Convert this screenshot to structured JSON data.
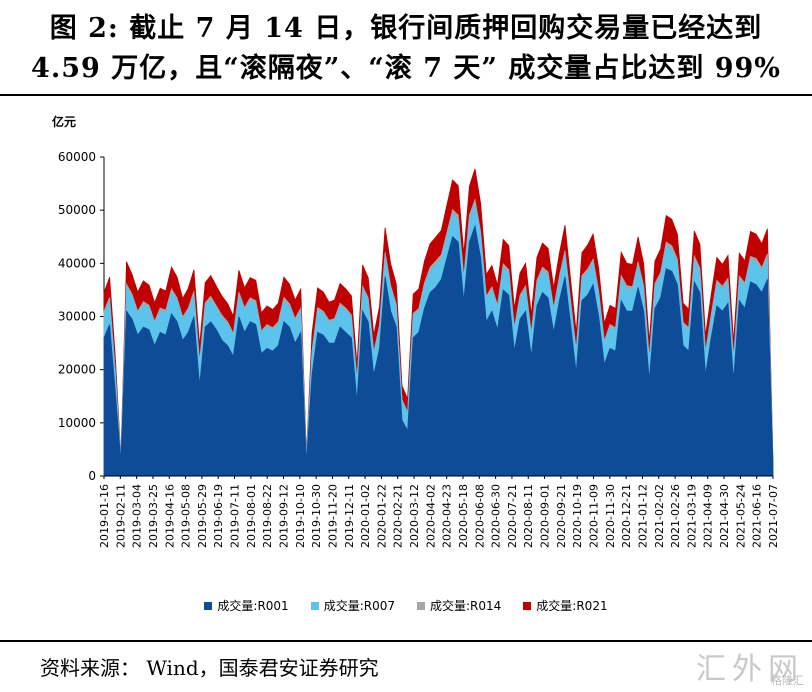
{
  "title": {
    "line1": "图 2: 截止 7 月 14 日，银行间质押回购交易量已经达到",
    "line2": "4.59 万亿，且“滚隔夜”、“滚 7 天” 成交量占比达到 99%"
  },
  "source": "资料来源： Wind，国泰君安证券研究",
  "watermark": {
    "main": "汇外网",
    "sub": "格隆汇"
  },
  "chart_data": {
    "type": "area",
    "ylabel": "亿元",
    "ylim": [
      0,
      60000
    ],
    "yticks": [
      "0",
      "10000",
      "20000",
      "30000",
      "40000",
      "50000",
      "60000"
    ],
    "x_tick_labels": [
      "2019-01-16",
      "2019-02-11",
      "2019-03-04",
      "2019-03-25",
      "2019-04-16",
      "2019-05-08",
      "2019-05-29",
      "2019-06-19",
      "2019-07-11",
      "2019-08-01",
      "2019-08-22",
      "2019-09-12",
      "2019-10-10",
      "2019-10-30",
      "2019-11-20",
      "2019-12-11",
      "2020-01-02",
      "2020-01-22",
      "2020-02-21",
      "2020-03-12",
      "2020-04-02",
      "2020-04-23",
      "2020-05-18",
      "2020-06-08",
      "2020-06-30",
      "2020-07-21",
      "2020-08-11",
      "2020-09-01",
      "2020-09-21",
      "2020-10-19",
      "2020-11-09",
      "2020-11-30",
      "2020-12-21",
      "2021-01-12",
      "2021-02-02",
      "2021-02-26",
      "2021-03-19",
      "2021-04-09",
      "2021-04-30",
      "2021-05-24",
      "2021-06-16",
      "2021-07-07"
    ],
    "stacked": true,
    "series": [
      {
        "name": "成交量:R001",
        "color": "#0f4c97",
        "values": [
          26000,
          28500,
          16000,
          2800,
          31000,
          29500,
          26500,
          28000,
          27500,
          24500,
          27000,
          26500,
          30500,
          29000,
          25500,
          27000,
          30000,
          17000,
          28000,
          29000,
          27500,
          25500,
          24500,
          22500,
          30000,
          27000,
          29000,
          28500,
          23000,
          24000,
          23500,
          24500,
          29000,
          28000,
          25000,
          27000,
          2500,
          19000,
          27000,
          26500,
          25000,
          25000,
          28000,
          27000,
          26000,
          14000,
          31000,
          29000,
          19000,
          24000,
          37500,
          31000,
          28000,
          10500,
          8500,
          26000,
          27000,
          31500,
          34500,
          35500,
          37000,
          41000,
          45000,
          44000,
          33000,
          44000,
          47000,
          41000,
          29000,
          31000,
          27500,
          35000,
          34000,
          23500,
          29500,
          31000,
          22500,
          32000,
          34500,
          33500,
          27000,
          33000,
          37500,
          28500,
          19500,
          33000,
          34000,
          36000,
          30000,
          21000,
          24000,
          23500,
          33000,
          31000,
          31000,
          35500,
          31000,
          18000,
          31500,
          33500,
          39000,
          38500,
          36000,
          24500,
          23500,
          36500,
          34500,
          19000,
          26000,
          32000,
          31000,
          32500,
          18000,
          33000,
          31500,
          36500,
          36000,
          34500,
          37000,
          2000
        ]
      },
      {
        "name": "成交量:R007",
        "color": "#5bc3ec",
        "values": [
          4500,
          4500,
          3500,
          200,
          4500,
          4200,
          4000,
          4200,
          4100,
          4200,
          4100,
          4200,
          4100,
          4000,
          4000,
          4100,
          4200,
          4100,
          4100,
          4200,
          4000,
          4200,
          4100,
          3900,
          4000,
          4200,
          4000,
          4000,
          3900,
          4100,
          4000,
          4100,
          4000,
          3900,
          4200,
          4100,
          600,
          4100,
          4200,
          4000,
          3900,
          4200,
          4000,
          4100,
          3900,
          3800,
          4100,
          4000,
          3900,
          4000,
          3900,
          4200,
          3800,
          3600,
          3200,
          4100,
          4000,
          4200,
          4100,
          4200,
          3900,
          4000,
          4200,
          4200,
          3900,
          4200,
          4100,
          4100,
          4200,
          4000,
          4100,
          4200,
          4100,
          4000,
          3900,
          4200,
          4000,
          4200,
          4100,
          4200,
          4100,
          4000,
          4200,
          4000,
          3800,
          4100,
          4200,
          4100,
          4200,
          4000,
          4100,
          4000,
          4100,
          4200,
          4000,
          4100,
          4100,
          3800,
          4100,
          4200,
          4200,
          4000,
          4100,
          4000,
          4000,
          4200,
          3900,
          4000,
          3900,
          4200,
          4100,
          4100,
          3900,
          4000,
          4200,
          4100,
          4200,
          4000,
          4100,
          200
        ]
      },
      {
        "name": "成交量:R014",
        "color": "#a6a6a6",
        "values": [
          500,
          600,
          400,
          100,
          600,
          500,
          500,
          600,
          500,
          400,
          500,
          500,
          600,
          500,
          400,
          500,
          600,
          400,
          500,
          600,
          500,
          500,
          400,
          400,
          600,
          500,
          500,
          500,
          400,
          400,
          400,
          400,
          600,
          500,
          400,
          500,
          100,
          400,
          500,
          500,
          400,
          400,
          500,
          500,
          400,
          300,
          600,
          500,
          400,
          400,
          700,
          600,
          500,
          300,
          300,
          500,
          500,
          600,
          700,
          700,
          700,
          800,
          900,
          900,
          600,
          900,
          900,
          800,
          600,
          600,
          500,
          700,
          700,
          400,
          600,
          600,
          400,
          600,
          700,
          700,
          500,
          600,
          700,
          500,
          400,
          600,
          700,
          700,
          600,
          400,
          400,
          400,
          600,
          600,
          600,
          700,
          600,
          300,
          600,
          600,
          800,
          800,
          700,
          400,
          400,
          700,
          700,
          300,
          500,
          600,
          600,
          600,
          300,
          600,
          600,
          700,
          700,
          700,
          700,
          50
        ]
      },
      {
        "name": "成交量:R021",
        "color": "#c00000",
        "values": [
          3500,
          3800,
          2800,
          300,
          4200,
          3700,
          3600,
          3900,
          3800,
          3500,
          3700,
          3600,
          4100,
          3900,
          3500,
          3700,
          4000,
          3000,
          3800,
          3900,
          3700,
          3600,
          3400,
          3300,
          4100,
          3700,
          3800,
          3800,
          3400,
          3500,
          3400,
          3500,
          3800,
          3700,
          3500,
          3600,
          500,
          3300,
          3700,
          3600,
          3400,
          3500,
          3700,
          3600,
          3600,
          2900,
          4000,
          3800,
          3200,
          3500,
          4600,
          4100,
          3800,
          2600,
          2500,
          3600,
          3700,
          4100,
          4400,
          4500,
          4600,
          5200,
          5600,
          5500,
          4300,
          5400,
          5800,
          5300,
          4100,
          4000,
          3800,
          4600,
          4500,
          3600,
          4200,
          4200,
          3500,
          4300,
          4500,
          4400,
          3800,
          4300,
          4800,
          4000,
          3300,
          4300,
          4500,
          4700,
          4200,
          3300,
          3600,
          3600,
          4400,
          4200,
          4200,
          4700,
          4200,
          3100,
          4200,
          4400,
          5000,
          5000,
          4700,
          3600,
          3500,
          4700,
          4500,
          3100,
          3700,
          4300,
          4100,
          4300,
          3000,
          4300,
          4200,
          4700,
          4600,
          4500,
          4700,
          300
        ]
      }
    ],
    "legend_position": "bottom"
  }
}
